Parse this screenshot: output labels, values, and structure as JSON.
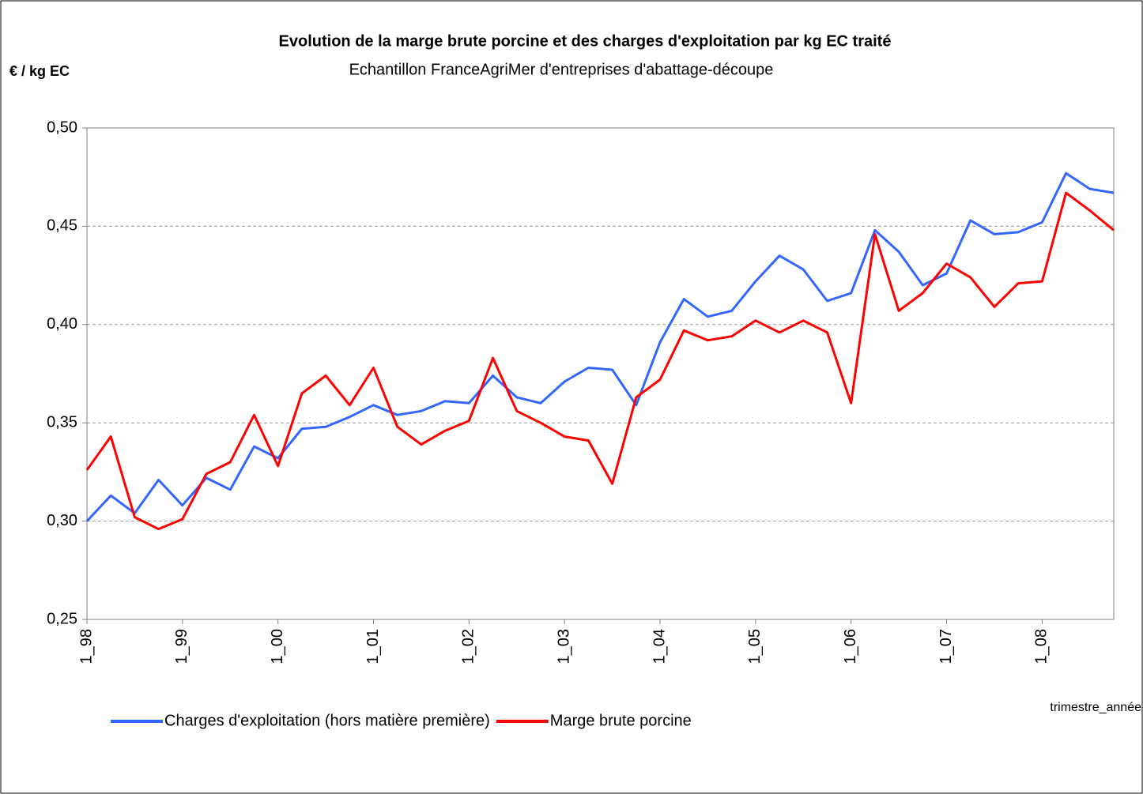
{
  "chart_data": {
    "type": "line",
    "title": "Evolution de la marge brute porcine et des charges d'exploitation par kg EC traité",
    "subtitle": "Echantillon FranceAgriMer d'entreprises d'abattage-découpe",
    "y_label": "€ / kg EC",
    "x_label": "trimestre_année",
    "categories": [
      "1_98",
      null,
      null,
      null,
      "1_99",
      null,
      null,
      null,
      "1_00",
      null,
      null,
      null,
      "1_01",
      null,
      null,
      null,
      "1_02",
      null,
      null,
      null,
      "1_03",
      null,
      null,
      null,
      "1_04",
      null,
      null,
      null,
      "1_05",
      null,
      null,
      null,
      "1_06",
      null,
      null,
      null,
      "1_07",
      null,
      null,
      null,
      "1_08",
      null,
      null,
      null
    ],
    "series": [
      {
        "name": "Charges d'exploitation (hors matière première)",
        "color": "#3366ff",
        "values": [
          0.3,
          0.313,
          0.304,
          0.321,
          0.308,
          0.322,
          0.316,
          0.338,
          0.332,
          0.347,
          0.348,
          0.353,
          0.359,
          0.354,
          0.356,
          0.361,
          0.36,
          0.374,
          0.363,
          0.36,
          0.371,
          0.378,
          0.377,
          0.359,
          0.391,
          0.413,
          0.404,
          0.407,
          0.422,
          0.435,
          0.428,
          0.412,
          0.416,
          0.448,
          0.437,
          0.42,
          0.426,
          0.453,
          0.446,
          0.447,
          0.452,
          0.477,
          0.469,
          0.467
        ]
      },
      {
        "name": "Marge brute porcine",
        "color": "#ff0000",
        "values": [
          0.326,
          0.343,
          0.302,
          0.296,
          0.301,
          0.324,
          0.33,
          0.354,
          0.328,
          0.365,
          0.374,
          0.359,
          0.378,
          0.348,
          0.339,
          0.346,
          0.351,
          0.383,
          0.356,
          0.35,
          0.343,
          0.341,
          0.319,
          0.363,
          0.372,
          0.397,
          0.392,
          0.394,
          0.402,
          0.396,
          0.402,
          0.396,
          0.36,
          0.446,
          0.407,
          0.416,
          0.431,
          0.424,
          0.409,
          0.421,
          0.422,
          0.467,
          0.458,
          0.448
        ]
      }
    ],
    "ylim": [
      0.25,
      0.5
    ],
    "yticks": [
      {
        "value": 0.25,
        "label": "0,25"
      },
      {
        "value": 0.3,
        "label": "0,30"
      },
      {
        "value": 0.35,
        "label": "0,35"
      },
      {
        "value": 0.4,
        "label": "0,40"
      },
      {
        "value": 0.45,
        "label": "0,45"
      },
      {
        "value": 0.5,
        "label": "0,50"
      }
    ],
    "grid": true,
    "legend": "bottom"
  }
}
